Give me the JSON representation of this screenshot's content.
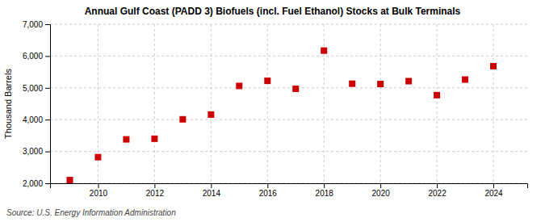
{
  "chart_data": {
    "type": "scatter",
    "title": "Annual Gulf Coast (PADD 3) Biofuels (incl. Fuel Ethanol) Stocks at Bulk Terminals",
    "ylabel": "Thousand Barrels",
    "annotations": [
      "Source: U.S. Energy Information Administration"
    ],
    "x": [
      2009,
      2010,
      2011,
      2012,
      2013,
      2014,
      2015,
      2016,
      2017,
      2018,
      2019,
      2020,
      2021,
      2022,
      2023,
      2024
    ],
    "values": [
      2100,
      2820,
      3380,
      3400,
      4010,
      4160,
      5060,
      5220,
      4970,
      6170,
      5130,
      5120,
      5210,
      4770,
      5260,
      5680
    ],
    "color": "#cc0000",
    "marker": "square",
    "xlim": [
      2008.3,
      2025.2
    ],
    "xticks": [
      2010,
      2012,
      2014,
      2016,
      2018,
      2020,
      2022,
      2024
    ],
    "ylim": [
      2000,
      7000
    ],
    "yticks": [
      {
        "value": 2000,
        "label": "2,000"
      },
      {
        "value": 3000,
        "label": "3,000"
      },
      {
        "value": 4000,
        "label": "4,000"
      },
      {
        "value": 5000,
        "label": "5,000"
      },
      {
        "value": 6000,
        "label": "6,000"
      },
      {
        "value": 7000,
        "label": "7,000"
      }
    ],
    "grid": true
  }
}
